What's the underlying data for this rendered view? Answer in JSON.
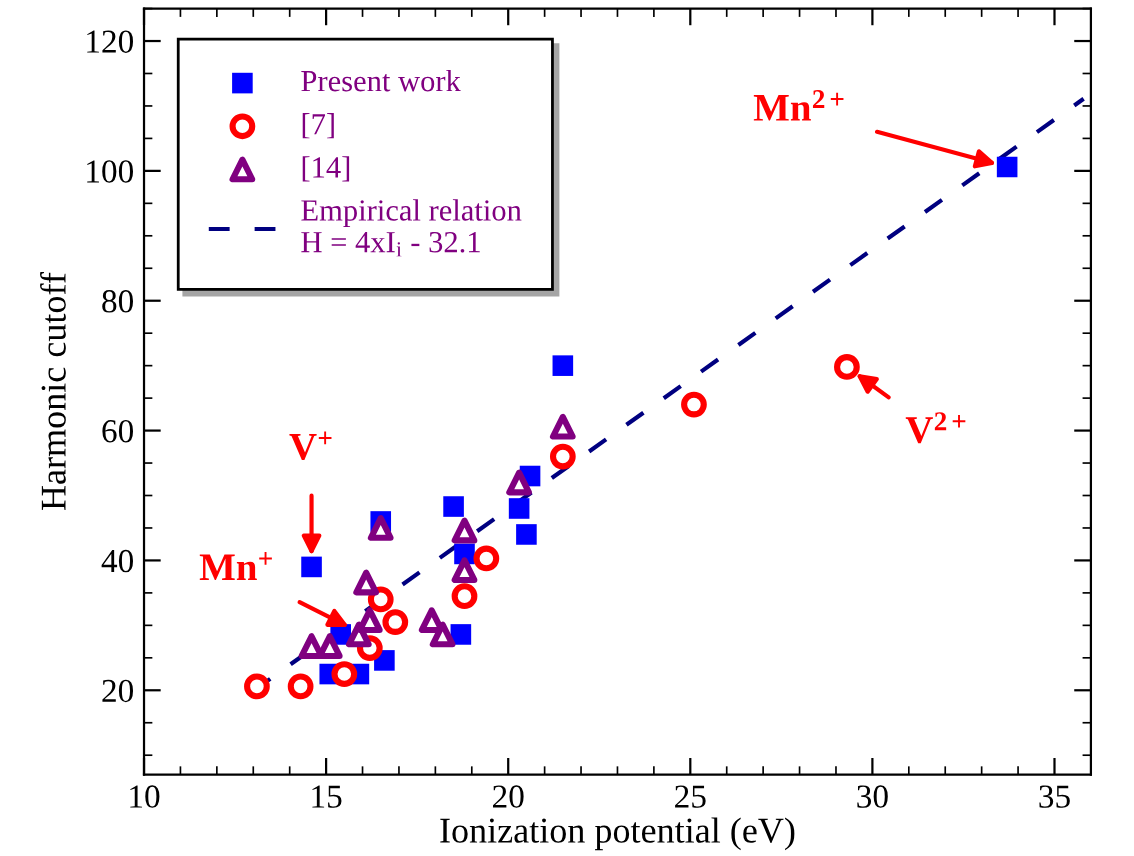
{
  "chart_data": {
    "type": "scatter",
    "xlabel": "Ionization potential (eV)",
    "ylabel": "Harmonic cutoff",
    "xlim": [
      10,
      36
    ],
    "ylim": [
      7,
      125
    ],
    "xticks": [
      10,
      15,
      20,
      25,
      30,
      35
    ],
    "yticks": [
      20,
      40,
      60,
      80,
      100,
      120
    ],
    "grid": false,
    "legend": "top left",
    "series": [
      {
        "name": "Present work",
        "marker": "square",
        "color": "#0000ff",
        "x": [
          14.6,
          15.1,
          15.9,
          15.4,
          16.6,
          16.5,
          18.5,
          18.8,
          18.7,
          20.3,
          20.5,
          21.5,
          20.6,
          33.7
        ],
        "values": [
          39,
          22.5,
          22.5,
          28.6,
          24.6,
          46,
          48.3,
          41,
          28.6,
          48,
          44,
          70,
          53,
          100.6
        ]
      },
      {
        "name": "[7]",
        "marker": "circle",
        "color": "#ff0000",
        "x": [
          13.1,
          14.3,
          15.5,
          16.2,
          16.5,
          16.9,
          18.8,
          19.4,
          21.5,
          25.1,
          29.3
        ],
        "values": [
          20.6,
          20.6,
          22.5,
          26.5,
          34,
          30.5,
          34.5,
          40.3,
          56,
          64,
          69.8
        ]
      },
      {
        "name": "[14]",
        "marker": "triangle",
        "color": "#800080",
        "x": [
          14.6,
          15.1,
          15.9,
          16.2,
          16.1,
          16.5,
          17.9,
          18.2,
          18.8,
          18.8,
          20.3,
          21.5
        ],
        "values": [
          26.8,
          26.8,
          28.6,
          30.8,
          36.6,
          45,
          30.8,
          28.6,
          44.6,
          38.5,
          52,
          60.6
        ]
      },
      {
        "name": "Empirical relation\nH = 4xI$_{i}$ - 32.1",
        "type": "line",
        "line_style": "dashed",
        "marker": "none",
        "color": "#000080",
        "x": [
          13,
          35.8
        ],
        "values": [
          19.9,
          111.1
        ]
      }
    ],
    "annotations": [
      {
        "text": "Mn$^{2+}$",
        "x": 33.7,
        "y": 100.6
      },
      {
        "text": "V$^{2+}$",
        "x": 29.3,
        "y": 69.8
      },
      {
        "text": "V$^{+}$",
        "x": 14.6,
        "y": 39
      },
      {
        "text": "Mn$^{+}$",
        "x": 15.9,
        "y": 29
      }
    ]
  }
}
